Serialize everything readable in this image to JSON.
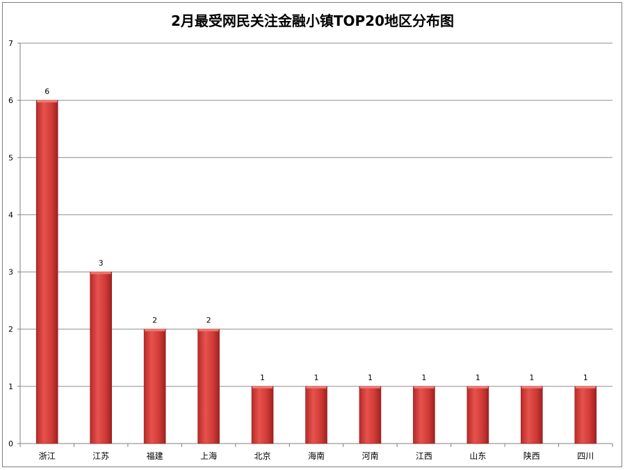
{
  "chart_data": {
    "type": "bar",
    "title": "2月最受网民关注金融小镇TOP20地区分布图",
    "categories": [
      "浙江",
      "江苏",
      "福建",
      "上海",
      "北京",
      "海南",
      "河南",
      "江西",
      "山东",
      "陕西",
      "四川"
    ],
    "values": [
      6,
      3,
      2,
      2,
      1,
      1,
      1,
      1,
      1,
      1,
      1
    ],
    "data_labels": [
      "6",
      "3",
      "2",
      "2",
      "1",
      "1",
      "1",
      "1",
      "1",
      "1",
      "1"
    ],
    "ylim": [
      0,
      7
    ],
    "yticks": [
      "0",
      "1",
      "2",
      "3",
      "4",
      "5",
      "6",
      "7"
    ],
    "grid": true,
    "legend": "none",
    "bar_color": "#c0302e",
    "bar_highlight": "#e6524d",
    "grid_color": "#8c8c8c"
  }
}
